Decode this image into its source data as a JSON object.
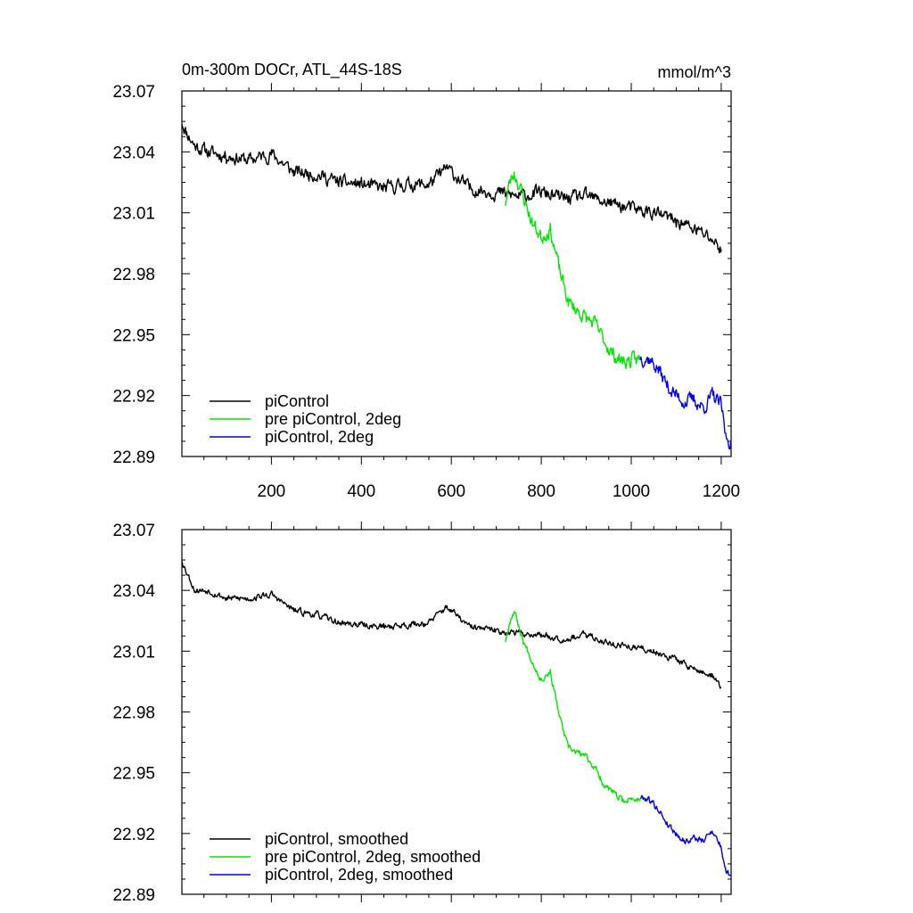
{
  "title_left": "0m-300m DOCr, ATL_44S-18S",
  "title_right": "mmol/m^3",
  "colors": {
    "piControl": "#000000",
    "pre": "#00e600",
    "twodeg": "#0000e6"
  },
  "chart_data": [
    {
      "type": "line",
      "title": "0m-300m DOCr, ATL_44S-18S",
      "units": "mmol/m^3",
      "xlim": [
        1,
        1222
      ],
      "ylim": [
        22.89,
        23.07
      ],
      "yticks": [
        "23.07",
        "23.04",
        "23.01",
        "22.98",
        "22.95",
        "22.92",
        "22.89"
      ],
      "xticks": [
        "200",
        "400",
        "600",
        "800",
        "1000",
        "1200"
      ],
      "legend_position": "bottom-left",
      "series": [
        {
          "name": "piControl",
          "color": "#000000",
          "noise": 0.0045,
          "seed": 11,
          "x": [
            1,
            10,
            30,
            60,
            100,
            150,
            200,
            250,
            300,
            350,
            400,
            450,
            500,
            550,
            590,
            640,
            700,
            750,
            800,
            850,
            900,
            950,
            1000,
            1050,
            1100,
            1150,
            1180,
            1200
          ],
          "values": [
            23.055,
            23.05,
            23.043,
            23.04,
            23.038,
            23.036,
            23.039,
            23.03,
            23.029,
            23.025,
            23.024,
            23.022,
            23.024,
            23.024,
            23.032,
            23.022,
            23.02,
            23.018,
            23.02,
            23.017,
            23.018,
            23.015,
            23.012,
            23.01,
            23.006,
            23.001,
            22.997,
            22.992
          ]
        },
        {
          "name": "pre piControl, 2deg",
          "color": "#00e600",
          "noise": 0.005,
          "seed": 23,
          "x": [
            720,
            730,
            740,
            760,
            780,
            800,
            820,
            840,
            860,
            880,
            900,
            920,
            940,
            960,
            980,
            1000,
            1020
          ],
          "values": [
            23.015,
            23.025,
            23.03,
            23.018,
            23.005,
            22.998,
            23.002,
            22.982,
            22.966,
            22.962,
            22.958,
            22.955,
            22.947,
            22.94,
            22.937,
            22.937,
            22.938
          ]
        },
        {
          "name": "piControl, 2deg",
          "color": "#0000e6",
          "noise": 0.005,
          "seed": 37,
          "x": [
            1020,
            1040,
            1060,
            1080,
            1100,
            1120,
            1140,
            1160,
            1180,
            1200,
            1210,
            1222
          ],
          "values": [
            22.939,
            22.938,
            22.933,
            22.925,
            22.92,
            22.917,
            22.918,
            22.914,
            22.92,
            22.915,
            22.9,
            22.897
          ]
        }
      ]
    },
    {
      "type": "line",
      "xlim": [
        1,
        1222
      ],
      "ylim": [
        22.89,
        23.07
      ],
      "yticks": [
        "23.07",
        "23.04",
        "23.01",
        "22.98",
        "22.95",
        "22.92",
        "22.89"
      ],
      "legend_position": "bottom-left",
      "series": [
        {
          "name": "piControl, smoothed",
          "color": "#000000",
          "noise": 0.0022,
          "seed": 53,
          "x": [
            1,
            10,
            30,
            60,
            100,
            150,
            200,
            250,
            300,
            350,
            400,
            450,
            500,
            550,
            590,
            640,
            700,
            750,
            800,
            850,
            900,
            950,
            1000,
            1050,
            1100,
            1150,
            1180,
            1200
          ],
          "values": [
            23.055,
            23.05,
            23.04,
            23.04,
            23.036,
            23.036,
            23.038,
            23.03,
            23.028,
            23.024,
            23.023,
            23.022,
            23.023,
            23.024,
            23.032,
            23.022,
            23.02,
            23.019,
            23.018,
            23.016,
            23.018,
            23.014,
            23.012,
            23.01,
            23.006,
            23.0,
            22.998,
            22.992
          ]
        },
        {
          "name": "pre piControl, 2deg, smoothed",
          "color": "#00e600",
          "noise": 0.0022,
          "seed": 67,
          "x": [
            720,
            730,
            740,
            760,
            780,
            800,
            820,
            840,
            860,
            880,
            900,
            920,
            940,
            960,
            980,
            1000,
            1020
          ],
          "values": [
            23.015,
            23.025,
            23.03,
            23.015,
            23.005,
            22.996,
            23.0,
            22.978,
            22.962,
            22.96,
            22.958,
            22.952,
            22.944,
            22.94,
            22.936,
            22.937,
            22.937
          ]
        },
        {
          "name": "piControl, 2deg, smoothed",
          "color": "#0000e6",
          "noise": 0.0022,
          "seed": 79,
          "x": [
            1020,
            1040,
            1060,
            1080,
            1100,
            1120,
            1140,
            1160,
            1180,
            1200,
            1210,
            1222
          ],
          "values": [
            22.938,
            22.937,
            22.932,
            22.925,
            22.92,
            22.916,
            22.918,
            22.916,
            22.922,
            22.913,
            22.902,
            22.899
          ]
        }
      ]
    }
  ]
}
